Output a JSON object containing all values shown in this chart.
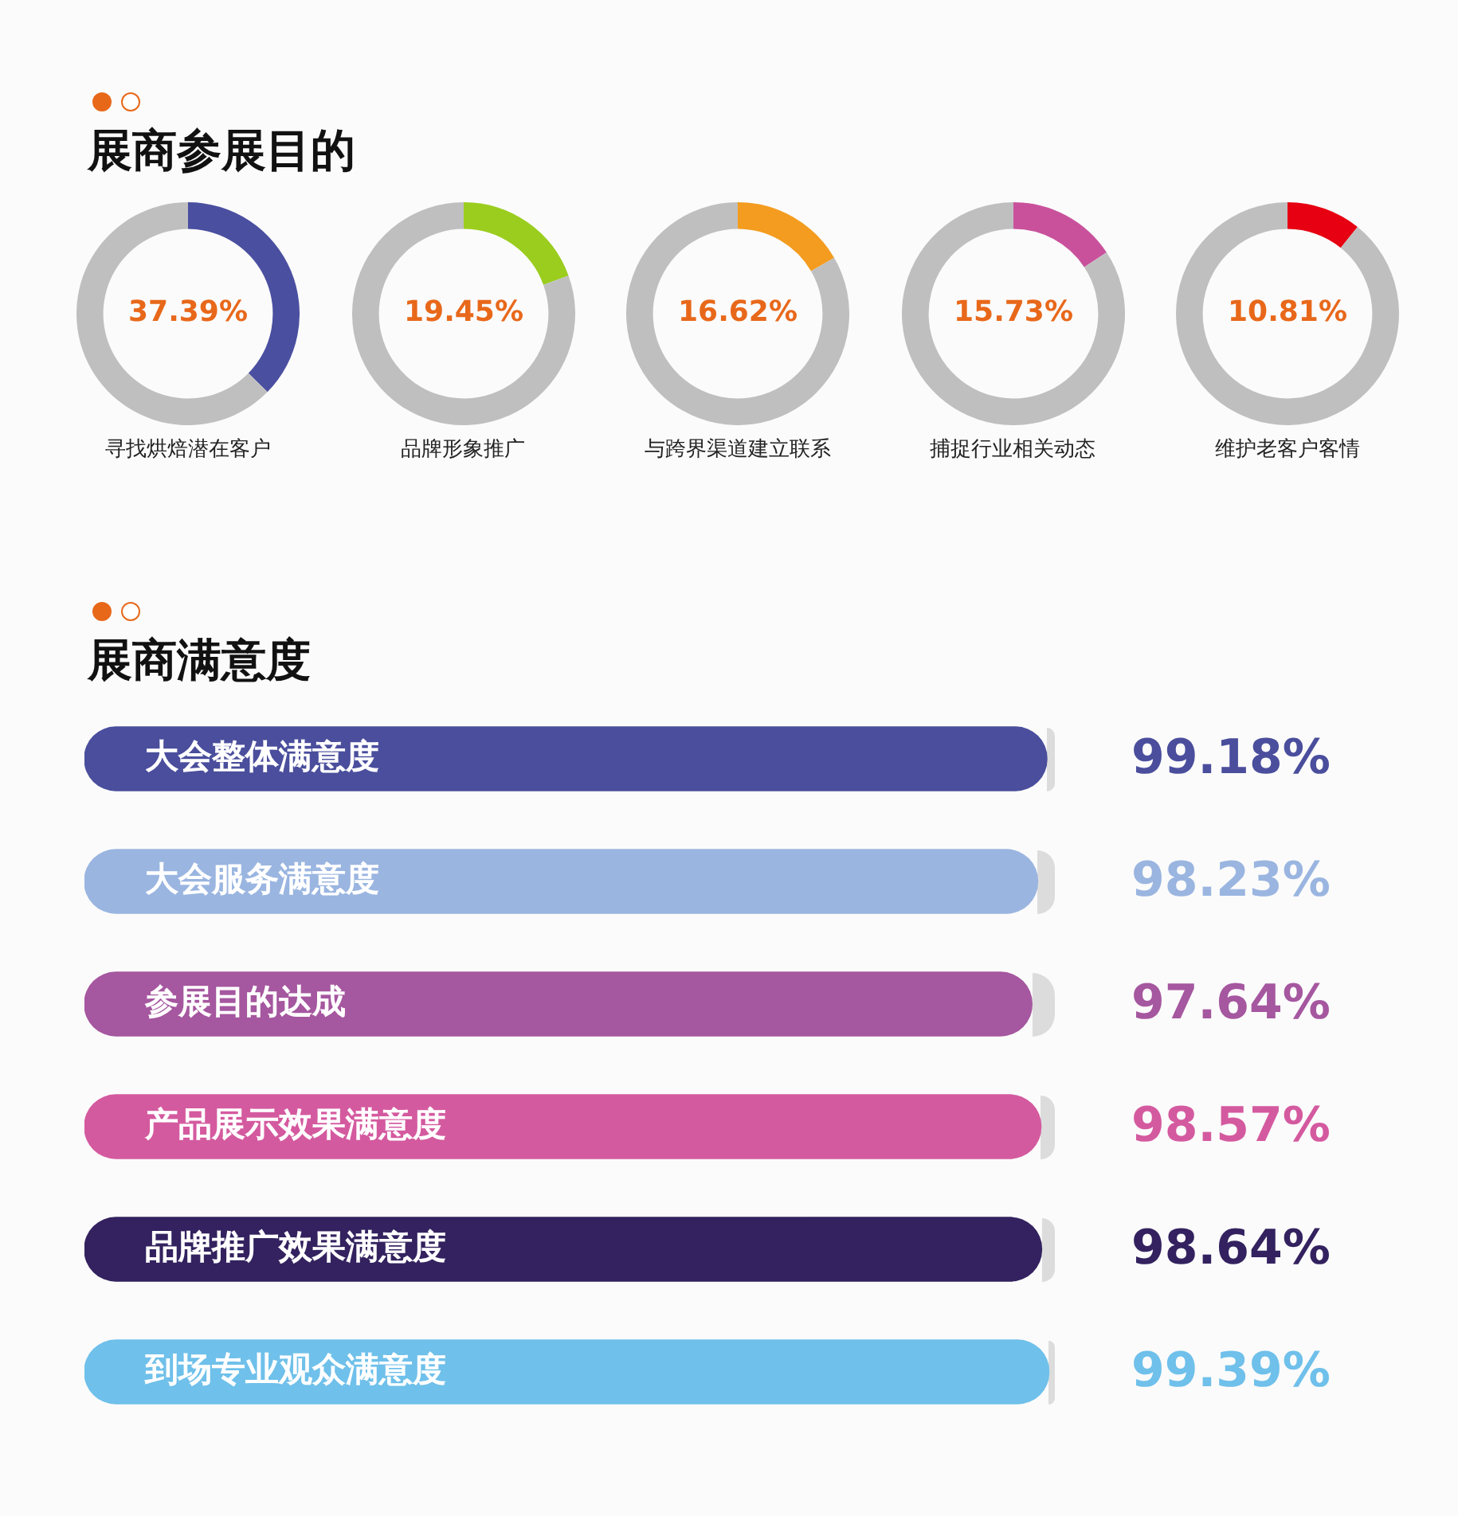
{
  "chart_data": [
    {
      "type": "other",
      "title": "展商参展目的"
    },
    {
      "type": "donut",
      "title": "寻找烘焙潜在客户",
      "categories": [
        null,
        null
      ],
      "values": [
        37.39,
        62.61
      ],
      "colors": [
        "#4a4fa0",
        "#bfbfbf"
      ],
      "value_labels": [
        "37.39%",
        null
      ]
    },
    {
      "type": "donut",
      "title": "品牌形象推广",
      "categories": [
        null,
        null
      ],
      "values": [
        19.45,
        80.55
      ],
      "colors": [
        "#9acd1e",
        "#bfbfbf"
      ],
      "value_labels": [
        "19.45%",
        null
      ]
    },
    {
      "type": "donut",
      "title": "与跨界渠道建立联系",
      "categories": [
        null,
        null
      ],
      "values": [
        16.62,
        83.38
      ],
      "colors": [
        "#f39c1f",
        "#bfbfbf"
      ],
      "value_labels": [
        "16.62%",
        null
      ]
    },
    {
      "type": "donut",
      "title": "捕捉行业相关动态",
      "categories": [
        null,
        null
      ],
      "values": [
        15.73,
        84.27
      ],
      "colors": [
        "#c9519c",
        "#bfbfbf"
      ],
      "value_labels": [
        "15.73%",
        null
      ]
    },
    {
      "type": "donut",
      "title": "维护老客户客情",
      "categories": [
        null,
        null
      ],
      "values": [
        10.81,
        89.19
      ],
      "colors": [
        "#e60012",
        "#bfbfbf"
      ],
      "value_labels": [
        "10.81%",
        null
      ]
    },
    {
      "type": "bar",
      "orientation": "horizontal",
      "title": "展商满意度",
      "categories": [
        "大会整体满意度",
        "大会服务满意度",
        "参展目的达成",
        "产品展示效果满意度",
        "品牌推广效果满意度",
        "到场专业观众满意度"
      ],
      "colors": [
        "#4a4e9c",
        "#9ab5e0",
        "#a5579f",
        "#d45a9f",
        "#33225f",
        "#6fc0ea"
      ],
      "values": [
        99.18,
        98.23,
        97.64,
        98.57,
        98.64,
        99.39
      ],
      "value_labels": [
        "99.18%",
        "98.23%",
        "97.64%",
        "98.57%",
        "98.64%",
        "99.39%"
      ],
      "xlim": [
        0,
        100
      ]
    }
  ]
}
